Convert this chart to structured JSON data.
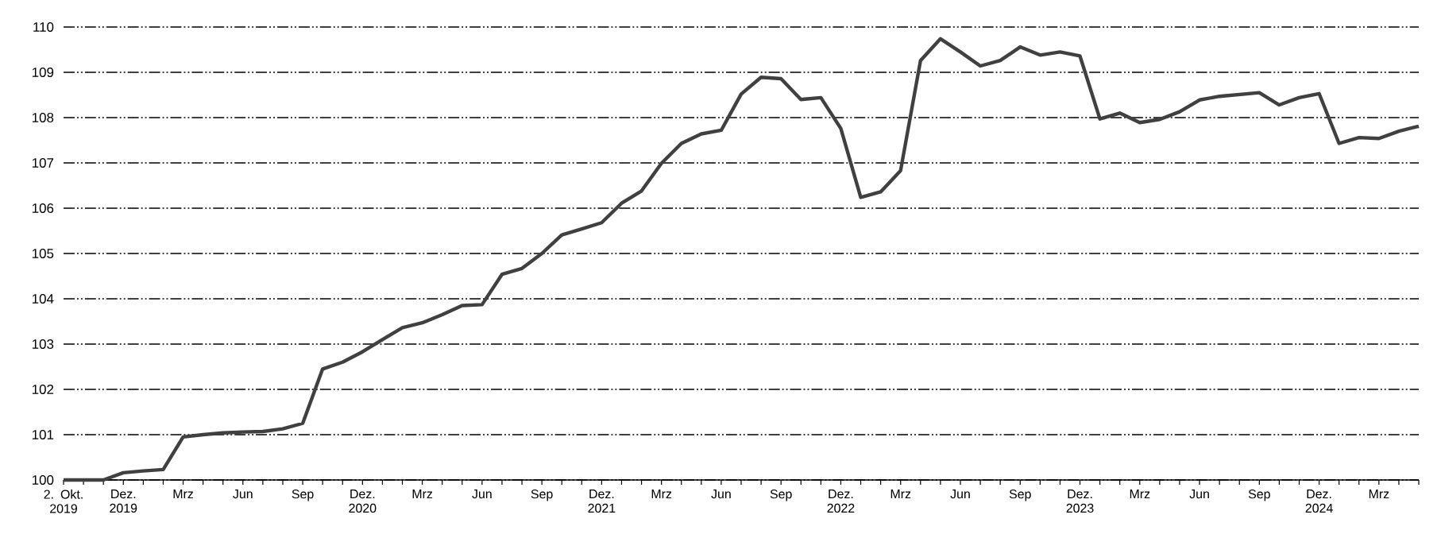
{
  "chart_data": {
    "type": "line",
    "categories": [
      "2. Okt. 2019",
      null,
      null,
      "Dez. 2019",
      null,
      null,
      "Mrz",
      null,
      null,
      "Jun",
      null,
      null,
      "Sep",
      null,
      null,
      "Dez. 2020",
      null,
      null,
      "Mrz",
      null,
      null,
      "Jun",
      null,
      null,
      "Sep",
      null,
      null,
      "Dez. 2021",
      null,
      null,
      "Mrz",
      null,
      null,
      "Jun",
      null,
      null,
      "Sep",
      null,
      null,
      "Dez. 2022",
      null,
      null,
      "Mrz",
      null,
      null,
      "Jun",
      null,
      null,
      "Sep",
      null,
      null,
      "Dez. 2023",
      null,
      null,
      "Mrz",
      null,
      null,
      "Jun",
      null,
      null,
      "Sep",
      null,
      null,
      "Dez. 2024",
      null,
      null,
      "Mrz",
      null,
      null
    ],
    "values": [
      100.0,
      100.0,
      100.0,
      100.16,
      100.2,
      100.23,
      100.95,
      101.0,
      101.04,
      101.06,
      101.07,
      101.13,
      101.25,
      102.45,
      102.6,
      102.83,
      103.1,
      103.36,
      103.47,
      103.65,
      103.85,
      103.87,
      104.54,
      104.67,
      105.0,
      105.41,
      105.54,
      105.68,
      106.11,
      106.38,
      106.99,
      107.43,
      107.64,
      107.72,
      108.52,
      108.89,
      108.86,
      108.4,
      108.44,
      107.76,
      106.24,
      106.36,
      106.83,
      109.26,
      109.74,
      109.45,
      109.14,
      109.26,
      109.56,
      109.38,
      109.45,
      109.36,
      107.97,
      108.1,
      107.89,
      107.96,
      108.13,
      108.39,
      108.47,
      108.51,
      108.55,
      108.28,
      108.44,
      108.53,
      107.43,
      107.56,
      107.54,
      107.7,
      107.81
    ],
    "color": "#404040",
    "line_style": "solid",
    "grid": "y",
    "ylim": [
      100,
      110
    ],
    "yticks": [
      100,
      101,
      102,
      103,
      104,
      105,
      106,
      107,
      108,
      109,
      110
    ]
  }
}
